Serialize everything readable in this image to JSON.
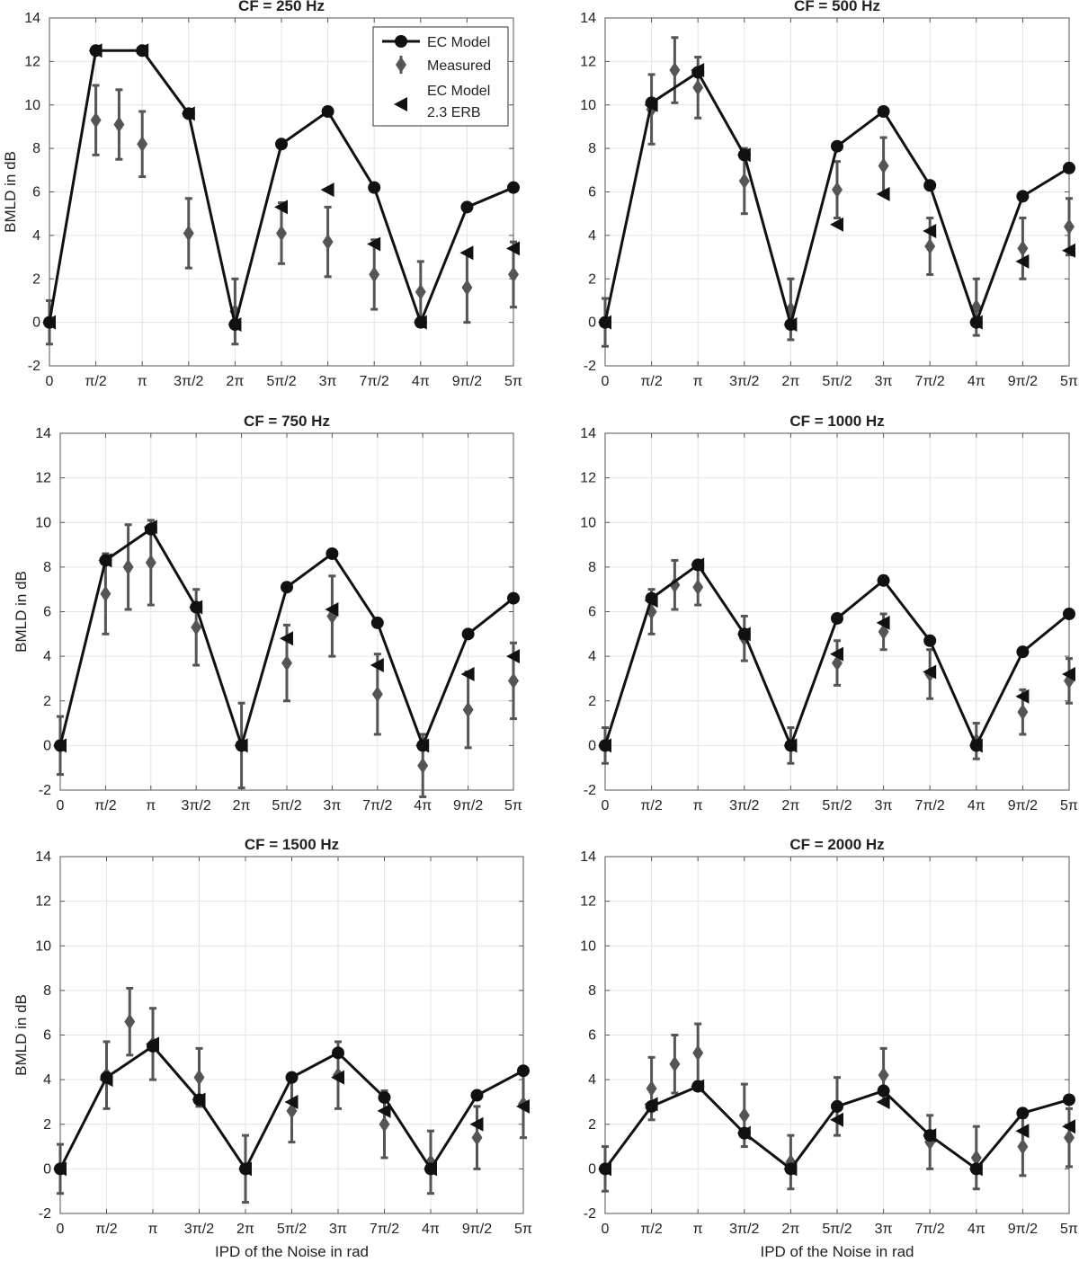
{
  "chart_data": [
    {
      "type": "line",
      "title": "CF = 250 Hz",
      "ylabel": "BMLD in dB",
      "xlabel": "",
      "x": [
        0,
        0.5,
        1,
        1.5,
        2,
        2.5,
        3,
        3.5,
        4,
        4.5,
        5
      ],
      "xtick_labels": [
        "0",
        "π/2",
        "π",
        "3π/2",
        "2π",
        "5π/2",
        "3π",
        "7π/2",
        "4π",
        "9π/2",
        "5π"
      ],
      "xlim": [
        0,
        5
      ],
      "ylim": [
        -2,
        14
      ],
      "yticks": [
        -2,
        0,
        2,
        4,
        6,
        8,
        10,
        12,
        14
      ],
      "grid": true,
      "legend_position": "top-right",
      "series": [
        {
          "name": "EC Model",
          "marker": "circle",
          "x": [
            0,
            0.5,
            1,
            1.5,
            2,
            2.5,
            3,
            3.5,
            4,
            4.5,
            5
          ],
          "values": [
            0,
            12.5,
            12.5,
            9.6,
            -0.1,
            8.2,
            9.7,
            6.2,
            0,
            5.3,
            6.2
          ]
        },
        {
          "name": "Measured",
          "marker": "diamond",
          "x": [
            0,
            0.5,
            0.75,
            1,
            1.5,
            2,
            2.5,
            3,
            3.5,
            4,
            4.5,
            5
          ],
          "values": [
            0,
            9.3,
            9.1,
            8.2,
            4.1,
            0.5,
            4.1,
            3.7,
            2.2,
            1.4,
            1.6,
            2.2
          ],
          "errors": [
            1.0,
            1.6,
            1.6,
            1.5,
            1.6,
            1.5,
            1.4,
            1.6,
            1.6,
            1.4,
            1.6,
            1.5
          ]
        },
        {
          "name": "EC Model 2.3 ERB",
          "marker": "triangle-left",
          "x": [
            0,
            0.5,
            1,
            1.5,
            2,
            2.5,
            3,
            3.5,
            4,
            4.5,
            5
          ],
          "values": [
            0,
            12.5,
            12.5,
            9.6,
            -0.1,
            5.3,
            6.1,
            3.6,
            0,
            3.2,
            3.4
          ]
        }
      ]
    },
    {
      "type": "line",
      "title": "CF = 500 Hz",
      "ylabel": "",
      "xlabel": "",
      "x": [
        0,
        0.5,
        1,
        1.5,
        2,
        2.5,
        3,
        3.5,
        4,
        4.5,
        5
      ],
      "xtick_labels": [
        "0",
        "π/2",
        "π",
        "3π/2",
        "2π",
        "5π/2",
        "3π",
        "7π/2",
        "4π",
        "9π/2",
        "5π"
      ],
      "xlim": [
        0,
        5
      ],
      "ylim": [
        -2,
        14
      ],
      "yticks": [
        -2,
        0,
        2,
        4,
        6,
        8,
        10,
        12,
        14
      ],
      "grid": true,
      "series": [
        {
          "name": "EC Model",
          "marker": "circle",
          "x": [
            0,
            0.5,
            1,
            1.5,
            2,
            2.5,
            3,
            3.5,
            4,
            4.5,
            5
          ],
          "values": [
            0,
            10.1,
            11.5,
            7.7,
            -0.1,
            8.1,
            9.7,
            6.3,
            0,
            5.8,
            7.1
          ]
        },
        {
          "name": "Measured",
          "marker": "diamond",
          "x": [
            0,
            0.5,
            0.75,
            1,
            1.5,
            2,
            2.5,
            3,
            3.5,
            4,
            4.5,
            5
          ],
          "values": [
            0,
            9.8,
            11.6,
            10.8,
            6.5,
            0.6,
            6.1,
            7.2,
            3.5,
            0.7,
            3.4,
            4.4
          ],
          "errors": [
            1.1,
            1.6,
            1.5,
            1.4,
            1.5,
            1.4,
            1.3,
            1.3,
            1.3,
            1.3,
            1.4,
            1.3
          ]
        },
        {
          "name": "EC Model 2.3 ERB",
          "marker": "triangle-left",
          "x": [
            0,
            0.5,
            1,
            1.5,
            2,
            2.5,
            3,
            3.5,
            4,
            4.5,
            5
          ],
          "values": [
            0,
            10.0,
            11.6,
            7.7,
            -0.1,
            4.5,
            5.9,
            4.2,
            0,
            2.8,
            3.3
          ]
        }
      ]
    },
    {
      "type": "line",
      "title": "CF = 750 Hz",
      "ylabel": "BMLD in dB",
      "xlabel": "",
      "x": [
        0,
        0.5,
        1,
        1.5,
        2,
        2.5,
        3,
        3.5,
        4,
        4.5,
        5
      ],
      "xtick_labels": [
        "0",
        "π/2",
        "π",
        "3π/2",
        "2π",
        "5π/2",
        "3π",
        "7π/2",
        "4π",
        "9π/2",
        "5π"
      ],
      "xlim": [
        0,
        5
      ],
      "ylim": [
        -2,
        14
      ],
      "yticks": [
        -2,
        0,
        2,
        4,
        6,
        8,
        10,
        12,
        14
      ],
      "grid": true,
      "series": [
        {
          "name": "EC Model",
          "marker": "circle",
          "x": [
            0,
            0.5,
            1,
            1.5,
            2,
            2.5,
            3,
            3.5,
            4,
            4.5,
            5
          ],
          "values": [
            0,
            8.3,
            9.7,
            6.2,
            0,
            7.1,
            8.6,
            5.5,
            0,
            5.0,
            6.6
          ]
        },
        {
          "name": "Measured",
          "marker": "diamond",
          "x": [
            0,
            0.5,
            0.75,
            1,
            1.5,
            2,
            2.5,
            3,
            3.5,
            4,
            4.5,
            5
          ],
          "values": [
            0,
            6.8,
            8.0,
            8.2,
            5.3,
            0,
            3.7,
            5.8,
            2.3,
            -0.9,
            1.6,
            2.9
          ],
          "errors": [
            1.3,
            1.8,
            1.9,
            1.9,
            1.7,
            1.9,
            1.7,
            1.8,
            1.8,
            1.4,
            1.7,
            1.7
          ]
        },
        {
          "name": "EC Model 2.3 ERB",
          "marker": "triangle-left",
          "x": [
            0,
            0.5,
            1,
            1.5,
            2,
            2.5,
            3,
            3.5,
            4,
            4.5,
            5
          ],
          "values": [
            0,
            8.3,
            9.8,
            6.2,
            0,
            4.8,
            6.1,
            3.6,
            0,
            3.2,
            4.0
          ]
        }
      ]
    },
    {
      "type": "line",
      "title": "CF = 1000 Hz",
      "ylabel": "",
      "xlabel": "",
      "x": [
        0,
        0.5,
        1,
        1.5,
        2,
        2.5,
        3,
        3.5,
        4,
        4.5,
        5
      ],
      "xtick_labels": [
        "0",
        "π/2",
        "π",
        "3π/2",
        "2π",
        "5π/2",
        "3π",
        "7π/2",
        "4π",
        "9π/2",
        "5π"
      ],
      "xlim": [
        0,
        5
      ],
      "ylim": [
        -2,
        14
      ],
      "yticks": [
        -2,
        0,
        2,
        4,
        6,
        8,
        10,
        12,
        14
      ],
      "grid": true,
      "series": [
        {
          "name": "EC Model",
          "marker": "circle",
          "x": [
            0,
            0.5,
            1,
            1.5,
            2,
            2.5,
            3,
            3.5,
            4,
            4.5,
            5
          ],
          "values": [
            0,
            6.6,
            8.1,
            5.0,
            0,
            5.7,
            7.4,
            4.7,
            0,
            4.2,
            5.9
          ]
        },
        {
          "name": "Measured",
          "marker": "diamond",
          "x": [
            0,
            0.5,
            0.75,
            1,
            1.5,
            2,
            2.5,
            3,
            3.5,
            4,
            4.5,
            5
          ],
          "values": [
            0,
            6.0,
            7.2,
            7.1,
            4.8,
            0,
            3.7,
            5.1,
            3.2,
            0.2,
            1.5,
            2.9
          ],
          "errors": [
            0.8,
            1.0,
            1.1,
            0.8,
            1.0,
            0.8,
            1.0,
            0.8,
            1.1,
            0.8,
            1.0,
            1.0
          ]
        },
        {
          "name": "EC Model 2.3 ERB",
          "marker": "triangle-left",
          "x": [
            0,
            0.5,
            1,
            1.5,
            2,
            2.5,
            3,
            3.5,
            4,
            4.5,
            5
          ],
          "values": [
            0,
            6.5,
            8.1,
            5.0,
            0,
            4.1,
            5.5,
            3.3,
            0,
            2.2,
            3.2
          ]
        }
      ]
    },
    {
      "type": "line",
      "title": "CF = 1500 Hz",
      "ylabel": "BMLD in dB",
      "xlabel": "IPD of the Noise in rad",
      "x": [
        0,
        0.5,
        1,
        1.5,
        2,
        2.5,
        3,
        3.5,
        4,
        4.5,
        5
      ],
      "xtick_labels": [
        "0",
        "π/2",
        "π",
        "3π/2",
        "2π",
        "5π/2",
        "3π",
        "7π/2",
        "4π",
        "9π/2",
        "5π"
      ],
      "xlim": [
        0,
        5
      ],
      "ylim": [
        -2,
        14
      ],
      "yticks": [
        -2,
        0,
        2,
        4,
        6,
        8,
        10,
        12,
        14
      ],
      "grid": true,
      "series": [
        {
          "name": "EC Model",
          "marker": "circle",
          "x": [
            0,
            0.5,
            1,
            1.5,
            2,
            2.5,
            3,
            3.5,
            4,
            4.5,
            5
          ],
          "values": [
            0,
            4.1,
            5.5,
            3.1,
            0,
            4.1,
            5.2,
            3.2,
            0,
            3.3,
            4.4
          ]
        },
        {
          "name": "Measured",
          "marker": "diamond",
          "x": [
            0,
            0.5,
            0.75,
            1,
            1.5,
            2,
            2.5,
            3,
            3.5,
            4,
            4.5,
            5
          ],
          "values": [
            0,
            4.2,
            6.6,
            5.6,
            4.1,
            0,
            2.6,
            4.2,
            2.0,
            0.3,
            1.4,
            2.9
          ],
          "errors": [
            1.1,
            1.5,
            1.5,
            1.6,
            1.3,
            1.5,
            1.4,
            1.5,
            1.5,
            1.4,
            1.4,
            1.5
          ]
        },
        {
          "name": "EC Model 2.3 ERB",
          "marker": "triangle-left",
          "x": [
            0,
            0.5,
            1,
            1.5,
            2,
            2.5,
            3,
            3.5,
            4,
            4.5,
            5
          ],
          "values": [
            0,
            4.0,
            5.6,
            3.1,
            0,
            3.0,
            4.1,
            2.6,
            0,
            2.0,
            2.8
          ]
        }
      ]
    },
    {
      "type": "line",
      "title": "CF = 2000 Hz",
      "ylabel": "",
      "xlabel": "IPD of the Noise in rad",
      "x": [
        0,
        0.5,
        1,
        1.5,
        2,
        2.5,
        3,
        3.5,
        4,
        4.5,
        5
      ],
      "xtick_labels": [
        "0",
        "π/2",
        "π",
        "3π/2",
        "2π",
        "5π/2",
        "3π",
        "7π/2",
        "4π",
        "9π/2",
        "5π"
      ],
      "xlim": [
        0,
        5
      ],
      "ylim": [
        -2,
        14
      ],
      "yticks": [
        -2,
        0,
        2,
        4,
        6,
        8,
        10,
        12,
        14
      ],
      "grid": true,
      "series": [
        {
          "name": "EC Model",
          "marker": "circle",
          "x": [
            0,
            0.5,
            1,
            1.5,
            2,
            2.5,
            3,
            3.5,
            4,
            4.5,
            5
          ],
          "values": [
            0,
            2.8,
            3.7,
            1.6,
            0,
            2.8,
            3.5,
            1.5,
            0,
            2.5,
            3.1
          ]
        },
        {
          "name": "Measured",
          "marker": "diamond",
          "x": [
            0,
            0.5,
            0.75,
            1,
            1.5,
            2,
            2.5,
            3,
            3.5,
            4,
            4.5,
            5
          ],
          "values": [
            0,
            3.6,
            4.7,
            5.2,
            2.4,
            0.3,
            2.8,
            4.2,
            1.2,
            0.5,
            1.0,
            1.4
          ],
          "errors": [
            1.0,
            1.4,
            1.3,
            1.3,
            1.4,
            1.2,
            1.3,
            1.2,
            1.2,
            1.4,
            1.3,
            1.3
          ]
        },
        {
          "name": "EC Model 2.3 ERB",
          "marker": "triangle-left",
          "x": [
            0,
            0.5,
            1,
            1.5,
            2,
            2.5,
            3,
            3.5,
            4,
            4.5,
            5
          ],
          "values": [
            0,
            2.9,
            3.7,
            1.6,
            0,
            2.2,
            3.0,
            1.5,
            0,
            1.7,
            1.9
          ]
        }
      ]
    }
  ],
  "legend": {
    "entries": [
      "EC Model",
      "Measured"
    ],
    "erb_line1": "EC Model",
    "erb_line2": "2.3 ERB"
  }
}
